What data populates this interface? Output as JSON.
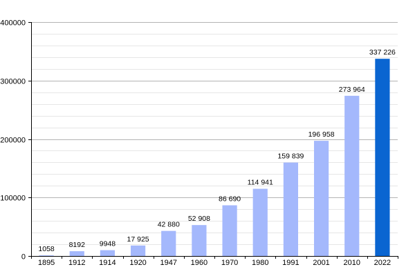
{
  "chart_data": {
    "type": "bar",
    "categories": [
      "1895",
      "1912",
      "1914",
      "1920",
      "1947",
      "1960",
      "1970",
      "1980",
      "1991",
      "2001",
      "2010",
      "2022"
    ],
    "values": [
      1058,
      8192,
      9948,
      17925,
      42880,
      52908,
      86690,
      114941,
      159839,
      196958,
      273964,
      337226
    ],
    "value_labels": [
      "1058",
      "8192",
      "9948",
      "17 925",
      "42 880",
      "52 908",
      "86 690",
      "114 941",
      "159 839",
      "196 958",
      "273 964",
      "337 226"
    ],
    "y_ticks": [
      0,
      100000,
      200000,
      300000,
      400000
    ],
    "y_tick_labels": [
      "0",
      "100000",
      "200000",
      "300000",
      "400000"
    ],
    "ylim": [
      0,
      400000
    ],
    "grid": true,
    "colors": {
      "bar": "#a4b8fc",
      "highlight_bar": "#0a65d1",
      "major_grid": "#b3b3b3",
      "minor_grid": "#e6e6e6",
      "axis": "#000000"
    },
    "highlight_index": 11
  }
}
